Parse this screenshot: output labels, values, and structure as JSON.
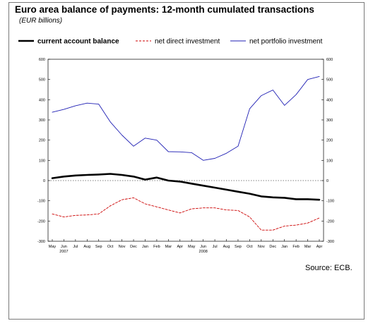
{
  "chart_data": {
    "type": "line",
    "title": "Euro area balance of payments: 12-month cumulated transactions",
    "subtitle": "(EUR billions)",
    "source": "Source: ECB.",
    "categories": [
      "May",
      "Jun",
      "Jul",
      "Aug",
      "Sep",
      "Oct",
      "Nov",
      "Dec",
      "Jan",
      "Feb",
      "Mar",
      "Apr",
      "May",
      "Jun",
      "Jul",
      "Aug",
      "Sep",
      "Oct",
      "Nov",
      "Dec",
      "Jan",
      "Feb",
      "Mar",
      "Apr"
    ],
    "year_labels": [
      {
        "index": 1,
        "label": "2007"
      },
      {
        "index": 13,
        "label": "2008"
      }
    ],
    "ylim": [
      -300,
      600
    ],
    "yticks": [
      600,
      500,
      400,
      300,
      200,
      100,
      0,
      -100,
      -200,
      -300
    ],
    "zero_line": "dotted",
    "legend_position": "top",
    "series": [
      {
        "name": "current account balance",
        "color": "#000000",
        "style": "solid-thick",
        "values": [
          12,
          20,
          25,
          28,
          30,
          33,
          28,
          20,
          5,
          15,
          0,
          -5,
          -15,
          -25,
          -35,
          -45,
          -55,
          -65,
          -78,
          -83,
          -85,
          -92,
          -92,
          -95
        ]
      },
      {
        "name": "net direct investment",
        "color": "#cc0000",
        "style": "dashed",
        "values": [
          -165,
          -180,
          -172,
          -170,
          -165,
          -125,
          -95,
          -85,
          -115,
          -130,
          -145,
          -160,
          -140,
          -135,
          -135,
          -145,
          -148,
          -180,
          -245,
          -245,
          -225,
          -220,
          -210,
          -185
        ]
      },
      {
        "name": "net portfolio investment",
        "color": "#1f1fb4",
        "style": "solid",
        "values": [
          338,
          352,
          370,
          383,
          378,
          290,
          225,
          170,
          210,
          200,
          143,
          142,
          138,
          100,
          110,
          135,
          170,
          355,
          420,
          448,
          372,
          425,
          500,
          515
        ]
      }
    ]
  }
}
